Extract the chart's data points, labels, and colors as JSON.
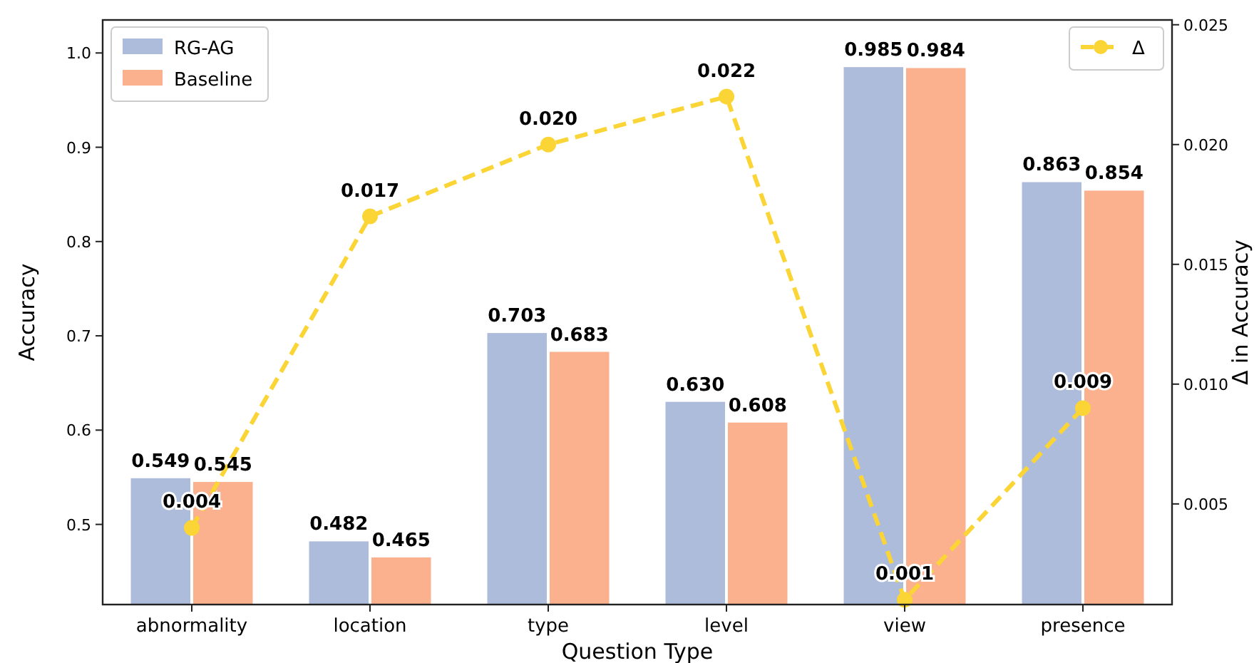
{
  "chart_data": {
    "type": "bar",
    "xlabel": "Question Type",
    "ylabel": "Accuracy",
    "y2label": "Δ in Accuracy",
    "categories": [
      "abnormality",
      "location",
      "type",
      "level",
      "view",
      "presence"
    ],
    "series": [
      {
        "name": "RG-AG",
        "color": "#aebcdc",
        "values": [
          0.549,
          0.482,
          0.703,
          0.63,
          0.985,
          0.863
        ],
        "value_labels": [
          "0.549",
          "0.482",
          "0.703",
          "0.630",
          "0.985",
          "0.863"
        ]
      },
      {
        "name": "Baseline",
        "color": "#fbb08e",
        "values": [
          0.545,
          0.465,
          0.683,
          0.608,
          0.984,
          0.854
        ],
        "value_labels": [
          "0.545",
          "0.465",
          "0.683",
          "0.608",
          "0.984",
          "0.854"
        ]
      },
      {
        "name": "Δ",
        "type": "line",
        "axis": "y2",
        "color": "#fbd535",
        "values": [
          0.004,
          0.017,
          0.02,
          0.022,
          0.001,
          0.009
        ],
        "value_labels": [
          "0.004",
          "0.017",
          "0.020",
          "0.022",
          "0.001",
          "0.009"
        ],
        "marker": "circle",
        "line_style": "dashed"
      }
    ],
    "ylim": [
      0.415,
      1.035
    ],
    "yticks": [
      {
        "value": 0.5,
        "label": "0.5"
      },
      {
        "value": 0.6,
        "label": "0.6"
      },
      {
        "value": 0.7,
        "label": "0.7"
      },
      {
        "value": 0.8,
        "label": "0.8"
      },
      {
        "value": 0.9,
        "label": "0.9"
      },
      {
        "value": 1.0,
        "label": "1.0"
      }
    ],
    "y2lim": [
      0.0008,
      0.0252
    ],
    "y2ticks": [
      {
        "value": 0.005,
        "label": "0.005"
      },
      {
        "value": 0.01,
        "label": "0.010"
      },
      {
        "value": 0.015,
        "label": "0.015"
      },
      {
        "value": 0.02,
        "label": "0.020"
      },
      {
        "value": 0.025,
        "label": "0.025"
      }
    ],
    "legend": "top left",
    "grid": false
  }
}
